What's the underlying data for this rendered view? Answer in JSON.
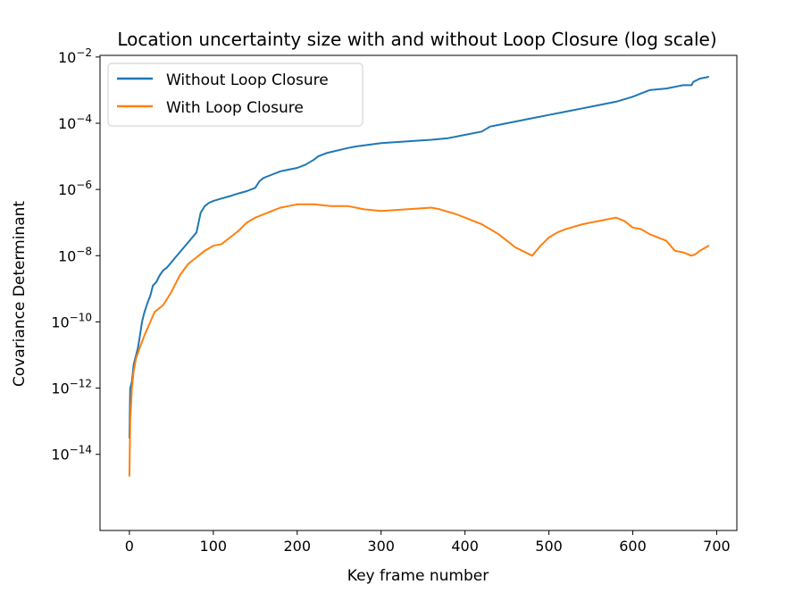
{
  "chart_data": {
    "type": "line",
    "title": "Location uncertainty size with and without Loop Closure (log scale)",
    "xlabel": "Key frame number",
    "ylabel": "Covariance Determinant",
    "xlim": [
      -35,
      724
    ],
    "ylim_log10": [
      -16.3,
      -1.95
    ],
    "y_scale": "log",
    "x_ticks": [
      0,
      100,
      200,
      300,
      400,
      500,
      600,
      700
    ],
    "y_ticks": [
      {
        "base": "10",
        "exp": "−2",
        "log10": -2
      },
      {
        "base": "10",
        "exp": "−4",
        "log10": -4
      },
      {
        "base": "10",
        "exp": "−6",
        "log10": -6
      },
      {
        "base": "10",
        "exp": "−8",
        "log10": -8
      },
      {
        "base": "10",
        "exp": "−10",
        "log10": -10
      },
      {
        "base": "10",
        "exp": "−12",
        "log10": -12
      },
      {
        "base": "10",
        "exp": "−14",
        "log10": -14
      }
    ],
    "grid": false,
    "legend_position": "top-left",
    "series": [
      {
        "name": "Without Loop Closure",
        "color": "#1f77b4",
        "x": [
          0,
          1,
          3,
          5,
          8,
          10,
          12,
          15,
          18,
          22,
          25,
          28,
          32,
          36,
          40,
          45,
          50,
          55,
          60,
          65,
          70,
          75,
          80,
          85,
          90,
          95,
          100,
          110,
          120,
          130,
          140,
          150,
          155,
          160,
          170,
          180,
          190,
          200,
          210,
          220,
          225,
          235,
          260,
          270,
          300,
          330,
          360,
          380,
          400,
          420,
          430,
          440,
          460,
          480,
          500,
          520,
          540,
          550,
          560,
          580,
          600,
          610,
          620,
          640,
          660,
          670,
          672,
          680,
          690
        ],
        "log10": [
          -13.5,
          -12.0,
          -11.8,
          -11.3,
          -11.0,
          -10.8,
          -10.5,
          -10.0,
          -9.7,
          -9.4,
          -9.2,
          -8.9,
          -8.8,
          -8.6,
          -8.45,
          -8.35,
          -8.2,
          -8.05,
          -7.9,
          -7.75,
          -7.6,
          -7.45,
          -7.3,
          -6.7,
          -6.5,
          -6.4,
          -6.35,
          -6.27,
          -6.2,
          -6.12,
          -6.05,
          -5.95,
          -5.75,
          -5.65,
          -5.55,
          -5.45,
          -5.4,
          -5.35,
          -5.25,
          -5.1,
          -5.0,
          -4.9,
          -4.75,
          -4.7,
          -4.6,
          -4.55,
          -4.5,
          -4.45,
          -4.35,
          -4.25,
          -4.1,
          -4.05,
          -3.95,
          -3.85,
          -3.75,
          -3.65,
          -3.55,
          -3.5,
          -3.45,
          -3.35,
          -3.2,
          -3.1,
          -3.0,
          -2.95,
          -2.85,
          -2.85,
          -2.75,
          -2.65,
          -2.6
        ]
      },
      {
        "name": "With Loop Closure",
        "color": "#ff7f0e",
        "x": [
          0,
          1,
          3,
          5,
          8,
          12,
          18,
          25,
          30,
          40,
          50,
          60,
          70,
          80,
          90,
          100,
          110,
          120,
          130,
          140,
          150,
          160,
          170,
          180,
          190,
          200,
          210,
          220,
          240,
          260,
          280,
          300,
          330,
          360,
          370,
          390,
          400,
          420,
          440,
          460,
          480,
          490,
          500,
          510,
          520,
          540,
          550,
          560,
          570,
          580,
          590,
          600,
          610,
          620,
          630,
          640,
          650,
          660,
          670,
          675,
          680,
          690
        ],
        "log10": [
          -14.65,
          -13.0,
          -12.0,
          -11.5,
          -11.1,
          -10.8,
          -10.4,
          -10.0,
          -9.7,
          -9.5,
          -9.1,
          -8.6,
          -8.25,
          -8.05,
          -7.85,
          -7.7,
          -7.65,
          -7.45,
          -7.25,
          -7.0,
          -6.85,
          -6.75,
          -6.65,
          -6.55,
          -6.5,
          -6.45,
          -6.45,
          -6.45,
          -6.5,
          -6.5,
          -6.6,
          -6.65,
          -6.6,
          -6.55,
          -6.6,
          -6.75,
          -6.85,
          -7.05,
          -7.35,
          -7.75,
          -8.0,
          -7.7,
          -7.45,
          -7.3,
          -7.2,
          -7.05,
          -7.0,
          -6.95,
          -6.9,
          -6.85,
          -6.95,
          -7.15,
          -7.2,
          -7.35,
          -7.45,
          -7.55,
          -7.85,
          -7.9,
          -8.0,
          -7.95,
          -7.85,
          -7.7
        ]
      }
    ]
  }
}
